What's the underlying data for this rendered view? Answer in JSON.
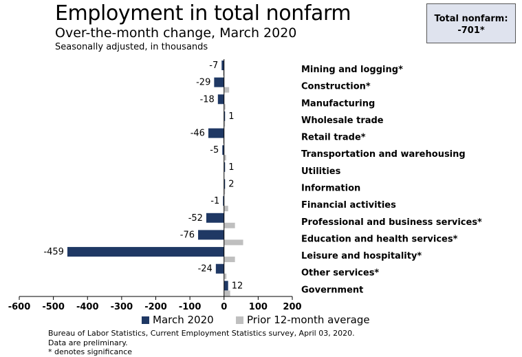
{
  "title": "Employment in total nonfarm",
  "subtitle": "Over-the-month change, March 2020",
  "note": "Seasonally adjusted, in thousands",
  "total_box": {
    "label": "Total nonfarm:",
    "value": "-701*"
  },
  "legend": {
    "series1": "March 2020",
    "series2": "Prior 12-month average"
  },
  "footer": {
    "source": "Bureau of Labor Statistics, Current Employment Statistics survey, April 03, 2020.",
    "prelim": "Data are preliminary.",
    "significance": "* denotes significance"
  },
  "colors": {
    "march": "#1f3864",
    "prior": "#bfbfbf",
    "axis": "#000000"
  },
  "chart_data": {
    "type": "bar",
    "orientation": "horizontal",
    "categories": [
      "Mining and logging*",
      "Construction*",
      "Manufacturing",
      "Wholesale trade",
      "Retail trade*",
      "Transportation and warehousing",
      "Utilities",
      "Information",
      "Financial activities",
      "Professional and business services*",
      "Education and health services*",
      "Leisure and hospitality*",
      "Other services*",
      "Government"
    ],
    "series": [
      {
        "name": "March 2020",
        "values": [
          -7,
          -29,
          -18,
          1,
          -46,
          -5,
          1,
          2,
          -1,
          -52,
          -76,
          -459,
          -24,
          12
        ],
        "data_labels": [
          "-7",
          "-29",
          "-18",
          "1",
          "-46",
          "-5",
          "1",
          "2",
          "-1",
          "-52",
          "-76",
          "-459",
          "-24",
          "12"
        ]
      },
      {
        "name": "Prior 12-month average",
        "values": [
          -1,
          15,
          4,
          2,
          -2,
          6,
          0,
          1,
          12,
          32,
          56,
          32,
          7,
          18
        ]
      }
    ],
    "xlim": [
      -600,
      200
    ],
    "xticks": [
      -600,
      -500,
      -400,
      -300,
      -200,
      -100,
      0,
      100,
      200
    ],
    "xtick_labels": [
      "-600",
      "-500",
      "-400",
      "-300",
      "-200",
      "-100",
      "0",
      "100",
      "200"
    ],
    "title": "Employment in total nonfarm",
    "xlabel": "",
    "ylabel": "",
    "legend_position": "bottom"
  }
}
